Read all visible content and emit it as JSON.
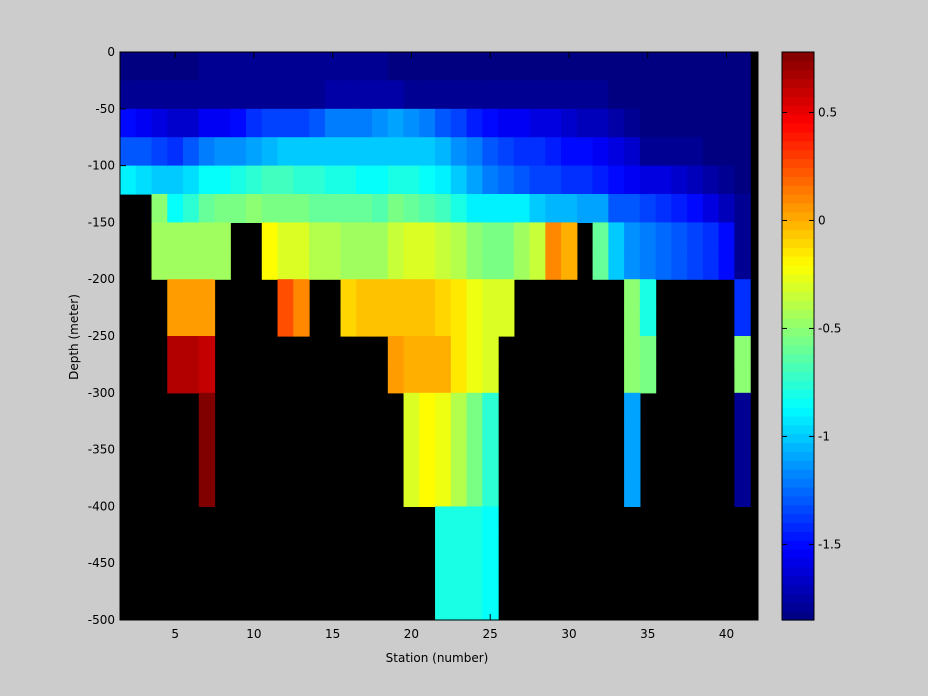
{
  "chart_data": {
    "type": "heatmap",
    "xlabel": "Station (number)",
    "ylabel": "Depth (meter)",
    "xlim": [
      1.5,
      42.0
    ],
    "ylim": [
      -500,
      0
    ],
    "x_ticks": [
      5,
      10,
      15,
      20,
      25,
      30,
      35,
      40
    ],
    "y_ticks": [
      0,
      -50,
      -100,
      -150,
      -200,
      -250,
      -300,
      -350,
      -400,
      -450,
      -500
    ],
    "colorbar": {
      "colormap": "jet",
      "clim": [
        -1.85,
        0.78
      ],
      "ticks": [
        0.5,
        0,
        -0.5,
        -1,
        -1.5
      ],
      "tick_labels": [
        "0.5",
        "0",
        "-0.5",
        "-1",
        "-1.5"
      ]
    },
    "no_data_color": "#000000",
    "background_color": "#cccccc",
    "stations": [
      2,
      3,
      4,
      5,
      6,
      7,
      8,
      9,
      10,
      11,
      12,
      13,
      14,
      15,
      16,
      17,
      18,
      19,
      20,
      21,
      22,
      23,
      24,
      25,
      26,
      27,
      28,
      29,
      30,
      31,
      32,
      33,
      34,
      35,
      36,
      37,
      38,
      39,
      40,
      41
    ],
    "depth_bins_top": [
      0,
      -25,
      -50,
      -75,
      -100,
      -125,
      -150,
      -175,
      -200,
      -225,
      -250,
      -275,
      -300,
      -325,
      -350,
      -375,
      -400,
      -425,
      -450,
      -475
    ],
    "values_by_station": [
      [
        -1.85,
        -1.8,
        -1.5,
        -1.3,
        -0.9,
        null,
        null,
        null,
        null,
        null,
        null,
        null,
        null,
        null,
        null,
        null,
        null,
        null,
        null,
        null
      ],
      [
        -1.85,
        -1.8,
        -1.55,
        -1.3,
        -0.95,
        null,
        null,
        null,
        null,
        null,
        null,
        null,
        null,
        null,
        null,
        null,
        null,
        null,
        null,
        null
      ],
      [
        -1.85,
        -1.8,
        -1.6,
        -1.35,
        -1.0,
        -0.5,
        -0.45,
        -0.45,
        null,
        null,
        null,
        null,
        null,
        null,
        null,
        null,
        null,
        null,
        null,
        null
      ],
      [
        -1.85,
        -1.8,
        -1.65,
        -1.4,
        -1.0,
        -0.85,
        -0.45,
        -0.45,
        0.05,
        0.05,
        0.65,
        0.65,
        null,
        null,
        null,
        null,
        null,
        null,
        null,
        null
      ],
      [
        -1.85,
        -1.8,
        -1.65,
        -1.3,
        -0.95,
        -0.75,
        -0.45,
        -0.45,
        0.05,
        0.05,
        0.65,
        0.65,
        null,
        null,
        null,
        null,
        null,
        null,
        null,
        null
      ],
      [
        -1.8,
        -1.8,
        -1.55,
        -1.2,
        -0.85,
        -0.6,
        -0.45,
        -0.45,
        0.05,
        0.05,
        0.6,
        0.6,
        0.78,
        0.78,
        0.78,
        0.78,
        null,
        null,
        null,
        null
      ],
      [
        -1.8,
        -1.8,
        -1.55,
        -1.15,
        -0.85,
        -0.55,
        -0.45,
        -0.45,
        null,
        null,
        null,
        null,
        null,
        null,
        null,
        null,
        null,
        null,
        null,
        null
      ],
      [
        -1.8,
        -1.8,
        -1.5,
        -1.15,
        -0.8,
        -0.55,
        null,
        null,
        null,
        null,
        null,
        null,
        null,
        null,
        null,
        null,
        null,
        null,
        null,
        null
      ],
      [
        -1.8,
        -1.8,
        -1.4,
        -1.1,
        -0.75,
        -0.5,
        null,
        null,
        null,
        null,
        null,
        null,
        null,
        null,
        null,
        null,
        null,
        null,
        null,
        null
      ],
      [
        -1.8,
        -1.8,
        -1.35,
        -1.05,
        -0.7,
        -0.55,
        -0.2,
        -0.2,
        null,
        null,
        null,
        null,
        null,
        null,
        null,
        null,
        null,
        null,
        null,
        null
      ],
      [
        -1.8,
        -1.8,
        -1.35,
        -1.0,
        -0.7,
        -0.55,
        -0.3,
        -0.3,
        0.25,
        0.25,
        null,
        null,
        null,
        null,
        null,
        null,
        null,
        null,
        null,
        null
      ],
      [
        -1.8,
        -1.8,
        -1.35,
        -1.0,
        -0.75,
        -0.55,
        -0.3,
        -0.3,
        0.1,
        0.1,
        null,
        null,
        null,
        null,
        null,
        null,
        null,
        null,
        null,
        null
      ],
      [
        -1.8,
        -1.8,
        -1.3,
        -1.0,
        -0.75,
        -0.6,
        -0.4,
        -0.4,
        null,
        null,
        null,
        null,
        null,
        null,
        null,
        null,
        null,
        null,
        null,
        null
      ],
      [
        -1.8,
        -1.75,
        -1.2,
        -1.0,
        -0.8,
        -0.6,
        -0.4,
        -0.4,
        null,
        null,
        null,
        null,
        null,
        null,
        null,
        null,
        null,
        null,
        null,
        null
      ],
      [
        -1.8,
        -1.75,
        -1.2,
        -1.0,
        -0.8,
        -0.6,
        -0.45,
        -0.45,
        -0.1,
        -0.1,
        null,
        null,
        null,
        null,
        null,
        null,
        null,
        null,
        null,
        null
      ],
      [
        -1.8,
        -1.75,
        -1.2,
        -1.0,
        -0.85,
        -0.6,
        -0.45,
        -0.45,
        -0.05,
        -0.05,
        null,
        null,
        null,
        null,
        null,
        null,
        null,
        null,
        null,
        null
      ],
      [
        -1.8,
        -1.75,
        -1.15,
        -1.0,
        -0.85,
        -0.65,
        -0.45,
        -0.45,
        -0.05,
        -0.05,
        null,
        null,
        null,
        null,
        null,
        null,
        null,
        null,
        null,
        null
      ],
      [
        -1.85,
        -1.75,
        -1.1,
        -1.0,
        -0.8,
        -0.55,
        -0.35,
        -0.35,
        -0.05,
        -0.05,
        0.05,
        0.05,
        null,
        null,
        null,
        null,
        null,
        null,
        null,
        null
      ],
      [
        -1.85,
        -1.8,
        -1.15,
        -1.0,
        -0.8,
        -0.6,
        -0.3,
        -0.3,
        -0.05,
        -0.05,
        0.0,
        0.0,
        -0.3,
        -0.3,
        -0.3,
        -0.3,
        null,
        null,
        null,
        null
      ],
      [
        -1.85,
        -1.8,
        -1.2,
        -1.0,
        -0.85,
        -0.65,
        -0.3,
        -0.3,
        -0.05,
        -0.05,
        0.0,
        0.0,
        -0.2,
        -0.2,
        -0.2,
        -0.2,
        null,
        null,
        null,
        null
      ],
      [
        -1.85,
        -1.8,
        -1.3,
        -1.05,
        -0.9,
        -0.7,
        -0.35,
        -0.35,
        -0.1,
        -0.1,
        0.0,
        0.0,
        -0.25,
        -0.25,
        -0.25,
        -0.25,
        -0.8,
        -0.8,
        -0.8,
        -0.8
      ],
      [
        -1.85,
        -1.8,
        -1.35,
        -1.15,
        -1.0,
        -0.8,
        -0.4,
        -0.4,
        -0.15,
        -0.15,
        -0.15,
        -0.15,
        -0.4,
        -0.4,
        -0.4,
        -0.4,
        -0.8,
        -0.8,
        -0.8,
        -0.8
      ],
      [
        -1.85,
        -1.8,
        -1.45,
        -1.2,
        -1.1,
        -0.9,
        -0.5,
        -0.5,
        -0.25,
        -0.25,
        -0.25,
        -0.25,
        -0.55,
        -0.55,
        -0.55,
        -0.55,
        -0.8,
        -0.8,
        -0.8,
        -0.8
      ],
      [
        -1.85,
        -1.8,
        -1.5,
        -1.3,
        -1.2,
        -0.9,
        -0.55,
        -0.55,
        -0.3,
        -0.3,
        -0.3,
        -0.3,
        -0.75,
        -0.75,
        -0.75,
        -0.75,
        -0.85,
        -0.85,
        -0.85,
        -0.85
      ],
      [
        -1.85,
        -1.8,
        -1.55,
        -1.35,
        -1.25,
        -0.9,
        -0.55,
        -0.55,
        -0.3,
        -0.3,
        null,
        null,
        null,
        null,
        null,
        null,
        null,
        null,
        null,
        null
      ],
      [
        -1.85,
        -1.8,
        -1.55,
        -1.4,
        -1.3,
        -0.9,
        -0.45,
        -0.45,
        null,
        null,
        null,
        null,
        null,
        null,
        null,
        null,
        null,
        null,
        null,
        null
      ],
      [
        -1.85,
        -1.8,
        -1.6,
        -1.4,
        -1.35,
        -1.0,
        -0.35,
        -0.35,
        null,
        null,
        null,
        null,
        null,
        null,
        null,
        null,
        null,
        null,
        null,
        null
      ],
      [
        -1.85,
        -1.8,
        -1.6,
        -1.45,
        -1.35,
        -1.05,
        0.1,
        0.1,
        null,
        null,
        null,
        null,
        null,
        null,
        null,
        null,
        null,
        null,
        null,
        null
      ],
      [
        -1.85,
        -1.8,
        -1.65,
        -1.5,
        -1.4,
        -1.05,
        0.0,
        0.0,
        null,
        null,
        null,
        null,
        null,
        null,
        null,
        null,
        null,
        null,
        null,
        null
      ],
      [
        -1.85,
        -1.8,
        -1.7,
        -1.5,
        -1.4,
        -1.1,
        null,
        null,
        null,
        null,
        null,
        null,
        null,
        null,
        null,
        null,
        null,
        null,
        null,
        null
      ],
      [
        -1.85,
        -1.8,
        -1.7,
        -1.55,
        -1.45,
        -1.1,
        -0.6,
        -0.6,
        null,
        null,
        null,
        null,
        null,
        null,
        null,
        null,
        null,
        null,
        null,
        null
      ],
      [
        -1.85,
        -1.85,
        -1.75,
        -1.6,
        -1.5,
        -1.3,
        -1.0,
        -1.0,
        null,
        null,
        null,
        null,
        null,
        null,
        null,
        null,
        null,
        null,
        null,
        null
      ],
      [
        -1.85,
        -1.85,
        -1.8,
        -1.65,
        -1.55,
        -1.3,
        -1.15,
        -1.15,
        -0.5,
        -0.5,
        -0.5,
        -0.5,
        -1.1,
        -1.1,
        -1.1,
        -1.1,
        null,
        null,
        null,
        null
      ],
      [
        -1.85,
        -1.85,
        -1.85,
        -1.8,
        -1.6,
        -1.35,
        -1.2,
        -1.2,
        -0.8,
        -0.8,
        -0.55,
        -0.55,
        null,
        null,
        null,
        null,
        null,
        null,
        null,
        null
      ],
      [
        -1.85,
        -1.85,
        -1.85,
        -1.8,
        -1.6,
        -1.4,
        -1.25,
        -1.25,
        null,
        null,
        null,
        null,
        null,
        null,
        null,
        null,
        null,
        null,
        null,
        null
      ],
      [
        -1.85,
        -1.85,
        -1.85,
        -1.8,
        -1.65,
        -1.45,
        -1.3,
        -1.3,
        null,
        null,
        null,
        null,
        null,
        null,
        null,
        null,
        null,
        null,
        null,
        null
      ],
      [
        -1.85,
        -1.85,
        -1.85,
        -1.8,
        -1.7,
        -1.5,
        -1.35,
        -1.35,
        null,
        null,
        null,
        null,
        null,
        null,
        null,
        null,
        null,
        null,
        null,
        null
      ],
      [
        -1.85,
        -1.85,
        -1.85,
        -1.85,
        -1.75,
        -1.6,
        -1.4,
        -1.4,
        null,
        null,
        null,
        null,
        null,
        null,
        null,
        null,
        null,
        null,
        null,
        null
      ],
      [
        -1.85,
        -1.85,
        -1.85,
        -1.85,
        -1.8,
        -1.7,
        -1.5,
        -1.5,
        null,
        null,
        null,
        null,
        null,
        null,
        null,
        null,
        null,
        null,
        null,
        null
      ],
      [
        -1.85,
        -1.85,
        -1.85,
        -1.85,
        -1.85,
        -1.8,
        -1.8,
        -1.8,
        -1.4,
        -1.4,
        -0.5,
        -0.5,
        -1.8,
        -1.8,
        -1.8,
        -1.8,
        null,
        null,
        null,
        null
      ]
    ]
  }
}
